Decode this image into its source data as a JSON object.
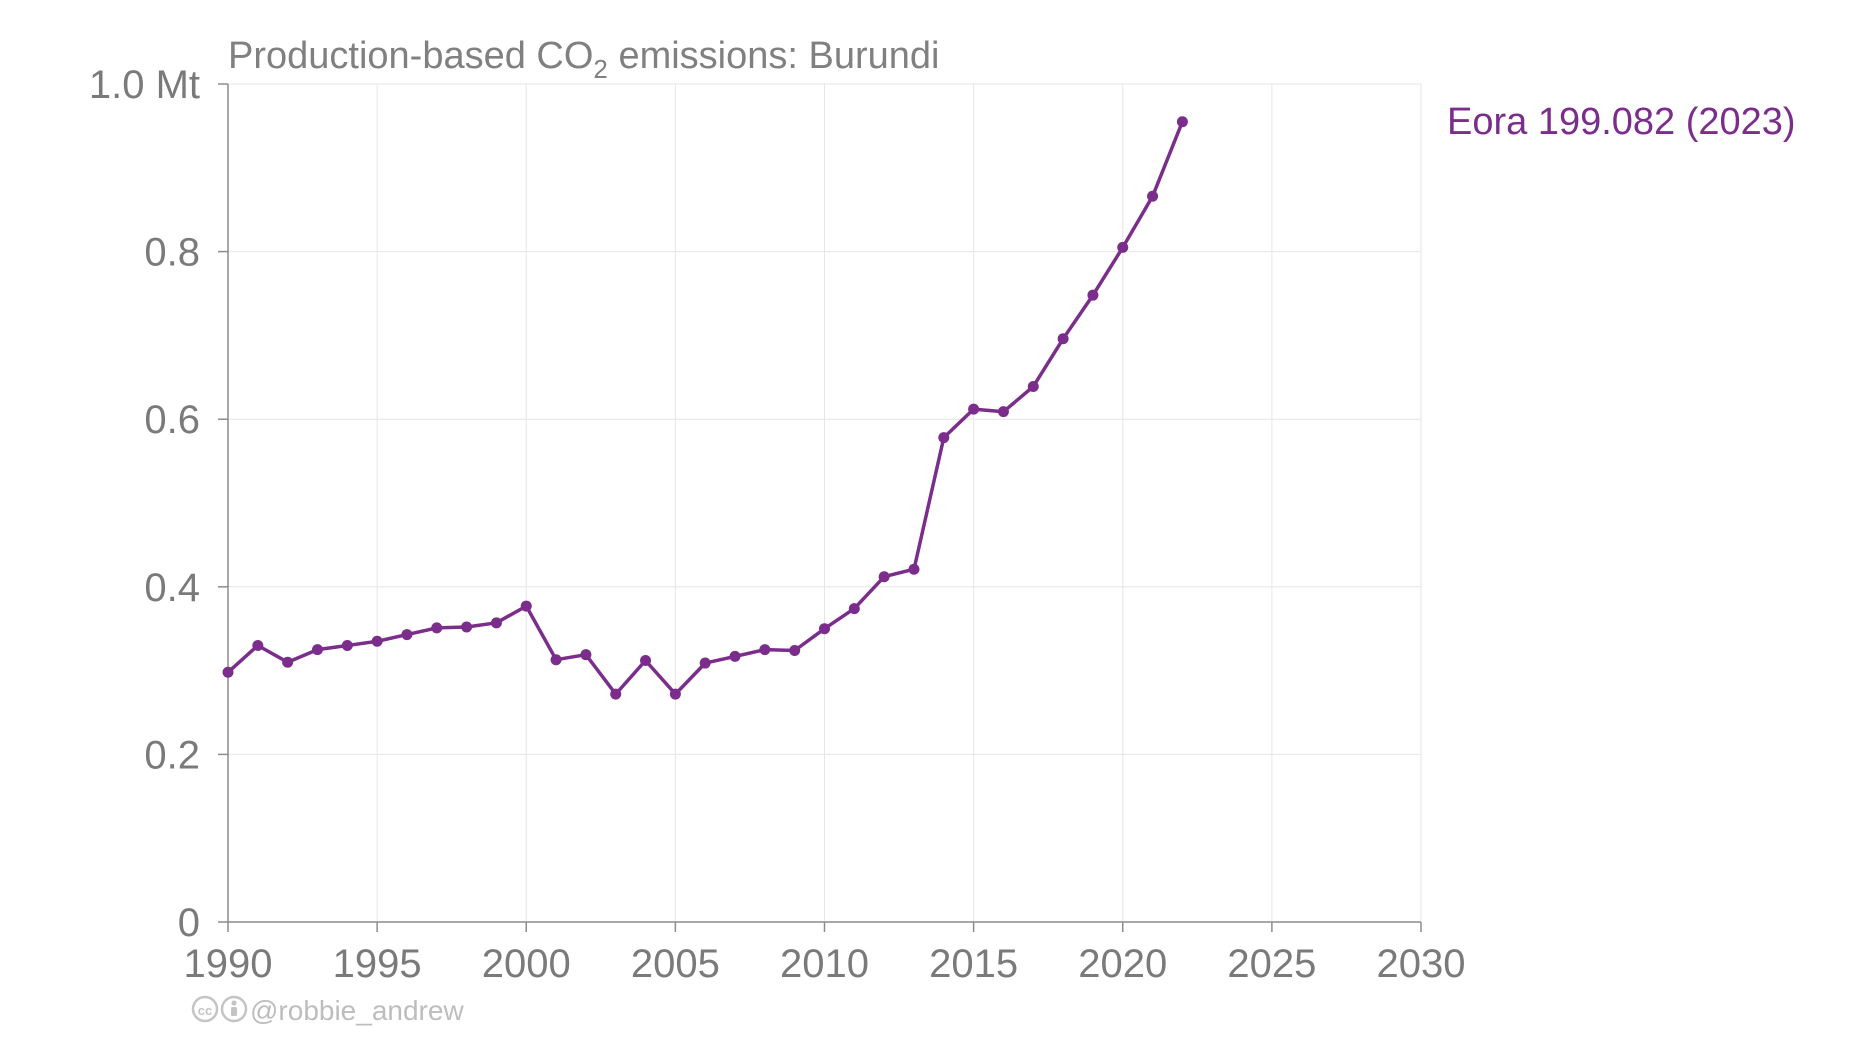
{
  "chart_data": {
    "type": "line",
    "title_parts": {
      "prefix": "Production-based CO",
      "subscript": "2",
      "suffix": " emissions: Burundi"
    },
    "xlim": [
      1990,
      2030
    ],
    "ylim": [
      0,
      1.0
    ],
    "x_ticks": [
      1990,
      1995,
      2000,
      2005,
      2010,
      2015,
      2020,
      2025,
      2030
    ],
    "y_ticks": [
      {
        "value": 0,
        "label": "0"
      },
      {
        "value": 0.2,
        "label": "0.2"
      },
      {
        "value": 0.4,
        "label": "0.4"
      },
      {
        "value": 0.6,
        "label": "0.6"
      },
      {
        "value": 0.8,
        "label": "0.8"
      },
      {
        "value": 1.0,
        "label": "1.0 Mt"
      }
    ],
    "grid": true,
    "series": [
      {
        "name": "Eora 199.082 (2023)",
        "color": "#7b2d8b",
        "x": [
          1990,
          1991,
          1992,
          1993,
          1994,
          1995,
          1996,
          1997,
          1998,
          1999,
          2000,
          2001,
          2002,
          2003,
          2004,
          2005,
          2006,
          2007,
          2008,
          2009,
          2010,
          2011,
          2012,
          2013,
          2014,
          2015,
          2016,
          2017,
          2018,
          2019,
          2020,
          2021,
          2022
        ],
        "values": [
          0.298,
          0.33,
          0.31,
          0.325,
          0.33,
          0.335,
          0.343,
          0.351,
          0.352,
          0.357,
          0.377,
          0.313,
          0.319,
          0.272,
          0.312,
          0.272,
          0.309,
          0.317,
          0.325,
          0.324,
          0.35,
          0.374,
          0.412,
          0.421,
          0.578,
          0.612,
          0.609,
          0.639,
          0.696,
          0.748,
          0.805,
          0.866,
          0.955
        ]
      }
    ]
  },
  "credit": {
    "icons": [
      "cc-icon",
      "by-icon"
    ],
    "handle": "@robbie_andrew"
  }
}
